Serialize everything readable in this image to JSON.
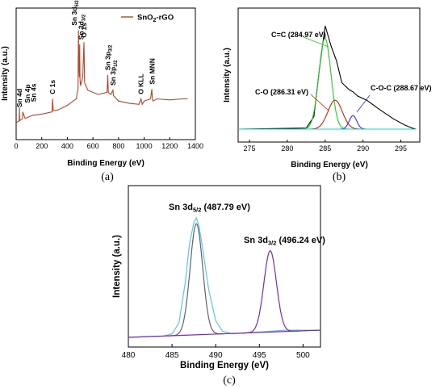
{
  "chart_data": [
    {
      "panel": "(a)",
      "type": "line",
      "xlabel": "Binding Energy (eV)",
      "ylabel": "Intensity (a.u.)",
      "xlim": [
        0,
        1400
      ],
      "xticks": [
        "0",
        "200",
        "400",
        "600",
        "800",
        "1000",
        "1200",
        "1400"
      ],
      "legend": "top-right",
      "series": [
        {
          "name": "SnO₂-rGO",
          "color": "#b5462a",
          "x": [
            0,
            24,
            26,
            28,
            50,
            52,
            70,
            90,
            130,
            200,
            280,
            285,
            290,
            330,
            400,
            470,
            484,
            487,
            490,
            494,
            496,
            499,
            503,
            520,
            530,
            535,
            560,
            640,
            710,
            716,
            720,
            740,
            756,
            760,
            800,
            880,
            960,
            975,
            985,
            1000,
            1050,
            1060,
            1064,
            1070,
            1100,
            1200,
            1300,
            1340
          ],
          "y": [
            0.08,
            0.1,
            0.22,
            0.1,
            0.12,
            0.18,
            0.12,
            0.13,
            0.15,
            0.16,
            0.18,
            0.3,
            0.19,
            0.2,
            0.24,
            0.3,
            0.4,
            0.93,
            0.6,
            0.5,
            0.8,
            0.48,
            0.42,
            0.5,
            0.82,
            0.45,
            0.38,
            0.34,
            0.36,
            0.52,
            0.36,
            0.34,
            0.38,
            0.33,
            0.28,
            0.26,
            0.25,
            0.3,
            0.25,
            0.28,
            0.3,
            0.39,
            0.3,
            0.28,
            0.3,
            0.29,
            0.3,
            0.3
          ]
        }
      ],
      "annotations": [
        {
          "text": "Sn 4d",
          "x": 24
        },
        {
          "text": "Sn 4p",
          "x": 88
        },
        {
          "text": "Sn 4s",
          "x": 137
        },
        {
          "text": "C 1s",
          "x": 285
        },
        {
          "text": "Sn 3d",
          "sub": "5/2",
          "x": 487
        },
        {
          "text": "Sn 3d",
          "sub": "3/2",
          "x": 496
        },
        {
          "text": "O 1s",
          "x": 530
        },
        {
          "text": "Sn 3p",
          "sub": "3/2",
          "x": 716
        },
        {
          "text": "Sn 3p",
          "sub": "1/2",
          "x": 756
        },
        {
          "text": "O KLL",
          "x": 975
        },
        {
          "text": "Sn MNN",
          "x": 1064
        }
      ]
    },
    {
      "panel": "(b)",
      "type": "line",
      "xlabel": "Binding Energy (eV)",
      "ylabel": "Intensity (a.u.)",
      "xlim": [
        273.5,
        297.5
      ],
      "xticks": [
        "275",
        "280",
        "285",
        "290",
        "295"
      ],
      "annotations": [
        {
          "text": "C=C (284.97 eV)"
        },
        {
          "text": "C-O (286.31 eV)"
        },
        {
          "text": "C-O-C (288.67 eV)"
        }
      ],
      "series": [
        {
          "role": "raw",
          "color": "#000000",
          "x": [
            273.5,
            282.5,
            283.5,
            284.3,
            285.0,
            285.8,
            286.5,
            287.2,
            288.2,
            288.7,
            289.3,
            290.5,
            292.0,
            294.0,
            295.5,
            296.5,
            297.0
          ],
          "y": [
            0.0,
            0.01,
            0.12,
            0.62,
            1.0,
            0.8,
            0.66,
            0.45,
            0.38,
            0.36,
            0.32,
            0.28,
            0.2,
            0.1,
            0.04,
            0.01,
            0.0
          ]
        },
        {
          "role": "C=C",
          "color": "#22cc22",
          "center": 284.97,
          "amp": 0.88,
          "sigma": 0.8
        },
        {
          "role": "C-O",
          "color": "#cc2200",
          "center": 286.31,
          "amp": 0.28,
          "sigma": 0.95
        },
        {
          "role": "C-O-C",
          "color": "#2233ee",
          "center": 288.67,
          "amp": 0.13,
          "sigma": 0.5
        },
        {
          "role": "baseline",
          "color": "#00dddd",
          "x": [
            273.5,
            297.0
          ],
          "y": [
            0.0,
            0.0
          ]
        }
      ]
    },
    {
      "panel": "(c)",
      "type": "line",
      "xlabel": "Binding Energy (eV)",
      "ylabel": "Intensity (a.u.)",
      "xlim": [
        480,
        502
      ],
      "xticks": [
        "480",
        "485",
        "490",
        "495",
        "500"
      ],
      "annotations": [
        {
          "text": "Sn 3d",
          "sub": "5/2",
          "value": " (487.79 eV)"
        },
        {
          "text": "Sn 3d",
          "sub": "3/2",
          "value": " (496.24 eV)"
        }
      ],
      "series": [
        {
          "role": "raw-fit",
          "color": "#5bc8e8",
          "x": [
            480,
            484,
            485,
            485.8,
            486.5,
            487.0,
            487.5,
            487.79,
            488.1,
            488.6,
            489.2,
            490.0,
            490.8,
            492,
            494,
            496,
            498,
            500,
            502
          ],
          "y": [
            0.0,
            0.01,
            0.03,
            0.12,
            0.45,
            0.78,
            0.96,
            1.0,
            0.93,
            0.7,
            0.4,
            0.14,
            0.05,
            0.03,
            0.04,
            0.05,
            0.06,
            0.06,
            0.06
          ]
        },
        {
          "role": "Sn 3d5/2",
          "color": "#5a6470",
          "center": 487.79,
          "amp": 0.93,
          "sigma": 0.72
        },
        {
          "role": "Sn 3d3/2",
          "color": "#7a2ab8",
          "center": 496.24,
          "amp": 0.68,
          "sigma": 0.72
        },
        {
          "role": "baseline",
          "color": "#7a2ab8",
          "x": [
            480,
            502
          ],
          "y": [
            0.0,
            0.06
          ]
        }
      ]
    }
  ]
}
